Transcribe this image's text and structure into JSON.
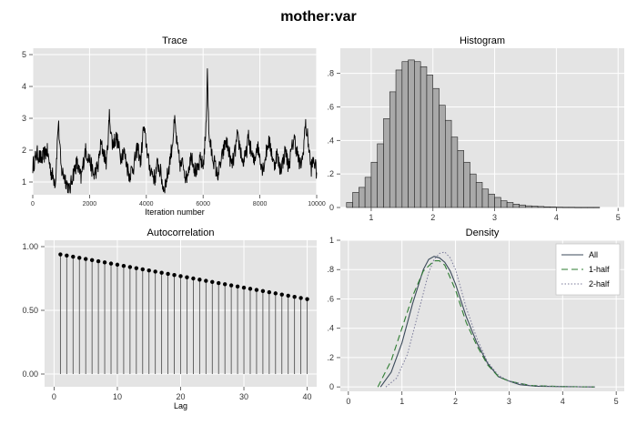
{
  "title": "mother:var",
  "colors": {
    "panel": "#e4e4e4",
    "grid": "#ffffff",
    "bar": "#a9a9a9",
    "line": "#000000",
    "all": "#3b4a5a",
    "half1": "#2e7d32",
    "half2": "#7a7a9a"
  },
  "chart_data": [
    {
      "type": "line",
      "title": "Trace",
      "xlabel": "Iteration number",
      "ylabel": "",
      "xlim": [
        0,
        10000
      ],
      "ylim": [
        0.6,
        5.2
      ],
      "xticks": [
        "0",
        "2000",
        "4000",
        "6000",
        "8000",
        "10000"
      ],
      "yticks": [
        "1",
        "2",
        "3",
        "4",
        "5"
      ],
      "grid": true,
      "anchors": [
        [
          0,
          1.5
        ],
        [
          150,
          1.9
        ],
        [
          300,
          1.7
        ],
        [
          500,
          2.0
        ],
        [
          650,
          1.3
        ],
        [
          800,
          1.0
        ],
        [
          900,
          2.9
        ],
        [
          1000,
          1.4
        ],
        [
          1150,
          1.1
        ],
        [
          1300,
          0.7
        ],
        [
          1400,
          1.2
        ],
        [
          1550,
          1.6
        ],
        [
          1700,
          1.1
        ],
        [
          1850,
          2.0
        ],
        [
          2000,
          1.7
        ],
        [
          2150,
          1.2
        ],
        [
          2300,
          1.5
        ],
        [
          2400,
          2.2
        ],
        [
          2500,
          1.9
        ],
        [
          2600,
          1.6
        ],
        [
          2700,
          3.1
        ],
        [
          2800,
          2.2
        ],
        [
          2950,
          2.4
        ],
        [
          3100,
          1.8
        ],
        [
          3200,
          2.0
        ],
        [
          3400,
          1.2
        ],
        [
          3550,
          1.5
        ],
        [
          3700,
          2.1
        ],
        [
          3800,
          1.6
        ],
        [
          3900,
          2.7
        ],
        [
          4000,
          2.2
        ],
        [
          4100,
          1.5
        ],
        [
          4200,
          1.3
        ],
        [
          4300,
          1.1
        ],
        [
          4400,
          1.6
        ],
        [
          4500,
          1.3
        ],
        [
          4600,
          0.8
        ],
        [
          4700,
          1.0
        ],
        [
          4800,
          1.5
        ],
        [
          4900,
          2.1
        ],
        [
          5000,
          2.9
        ],
        [
          5100,
          2.0
        ],
        [
          5200,
          1.5
        ],
        [
          5300,
          1.6
        ],
        [
          5400,
          1.1
        ],
        [
          5500,
          1.5
        ],
        [
          5600,
          1.9
        ],
        [
          5700,
          1.4
        ],
        [
          5800,
          1.3
        ],
        [
          5900,
          1.7
        ],
        [
          6000,
          1.5
        ],
        [
          6100,
          2.6
        ],
        [
          6150,
          4.6
        ],
        [
          6200,
          2.5
        ],
        [
          6300,
          1.9
        ],
        [
          6400,
          1.6
        ],
        [
          6500,
          1.2
        ],
        [
          6600,
          1.5
        ],
        [
          6700,
          1.9
        ],
        [
          6800,
          2.3
        ],
        [
          6900,
          2.0
        ],
        [
          7000,
          1.5
        ],
        [
          7100,
          1.8
        ],
        [
          7200,
          2.4
        ],
        [
          7300,
          2.1
        ],
        [
          7400,
          1.6
        ],
        [
          7500,
          1.8
        ],
        [
          7600,
          2.4
        ],
        [
          7700,
          1.9
        ],
        [
          7800,
          1.6
        ],
        [
          7900,
          2.2
        ],
        [
          8000,
          1.8
        ],
        [
          8100,
          1.4
        ],
        [
          8200,
          1.8
        ],
        [
          8300,
          2.3
        ],
        [
          8400,
          2.0
        ],
        [
          8500,
          1.5
        ],
        [
          8600,
          1.9
        ],
        [
          8700,
          1.4
        ],
        [
          8800,
          1.6
        ],
        [
          8900,
          2.0
        ],
        [
          9000,
          1.5
        ],
        [
          9100,
          1.9
        ],
        [
          9200,
          2.4
        ],
        [
          9300,
          2.0
        ],
        [
          9400,
          1.5
        ],
        [
          9500,
          1.7
        ],
        [
          9600,
          2.8
        ],
        [
          9700,
          2.3
        ],
        [
          9800,
          1.4
        ],
        [
          9900,
          1.7
        ],
        [
          10000,
          1.3
        ]
      ]
    },
    {
      "type": "bar",
      "title": "Histogram",
      "xlim": [
        0.5,
        5.1
      ],
      "ylim": [
        0,
        0.95
      ],
      "xticks": [
        "1",
        "2",
        "3",
        "4",
        "5"
      ],
      "yticks": [
        "0",
        ".2",
        ".4",
        ".6",
        ".8"
      ],
      "grid": true,
      "bin_start": 0.6,
      "bin_width": 0.1,
      "values": [
        0.03,
        0.09,
        0.12,
        0.18,
        0.27,
        0.38,
        0.53,
        0.69,
        0.82,
        0.87,
        0.88,
        0.87,
        0.84,
        0.79,
        0.71,
        0.61,
        0.52,
        0.42,
        0.34,
        0.27,
        0.2,
        0.15,
        0.11,
        0.08,
        0.06,
        0.04,
        0.03,
        0.02,
        0.015,
        0.01,
        0.008,
        0.006,
        0.004,
        0.003,
        0.002,
        0.0015,
        0.0015,
        0.001,
        0.001,
        0.001,
        0.001
      ]
    },
    {
      "type": "bar",
      "title": "Autocorrelation",
      "xlabel": "Lag",
      "xlim": [
        -1.5,
        41.5
      ],
      "ylim": [
        -0.1,
        1.05
      ],
      "xticks": [
        "0",
        "10",
        "20",
        "30",
        "40"
      ],
      "yticks": [
        "0.00",
        "0.50",
        "1.00"
      ],
      "grid": true,
      "lags": [
        1,
        2,
        3,
        4,
        5,
        6,
        7,
        8,
        9,
        10,
        11,
        12,
        13,
        14,
        15,
        16,
        17,
        18,
        19,
        20,
        21,
        22,
        23,
        24,
        25,
        26,
        27,
        28,
        29,
        30,
        31,
        32,
        33,
        34,
        35,
        36,
        37,
        38,
        39,
        40
      ],
      "values": [
        0.939,
        0.93,
        0.921,
        0.912,
        0.903,
        0.894,
        0.885,
        0.876,
        0.867,
        0.858,
        0.849,
        0.84,
        0.831,
        0.822,
        0.813,
        0.804,
        0.795,
        0.786,
        0.777,
        0.768,
        0.759,
        0.75,
        0.741,
        0.732,
        0.723,
        0.714,
        0.705,
        0.696,
        0.687,
        0.678,
        0.669,
        0.66,
        0.651,
        0.642,
        0.633,
        0.624,
        0.615,
        0.606,
        0.597,
        0.588
      ]
    },
    {
      "type": "line",
      "title": "Density",
      "xlim": [
        -0.15,
        5.15
      ],
      "ylim": [
        -0.03,
        1.0
      ],
      "xticks": [
        "0",
        "1",
        "2",
        "3",
        "4",
        "5"
      ],
      "yticks": [
        "0",
        ".2",
        ".4",
        ".6",
        ".8",
        "1"
      ],
      "grid": true,
      "legend": "top-right",
      "series": [
        {
          "name": "All",
          "x": [
            0.6,
            0.8,
            1.0,
            1.2,
            1.4,
            1.5,
            1.6,
            1.7,
            1.8,
            1.9,
            2.0,
            2.2,
            2.4,
            2.6,
            2.8,
            3.0,
            3.2,
            3.5,
            4.0,
            4.6
          ],
          "y": [
            0.0,
            0.1,
            0.3,
            0.57,
            0.8,
            0.87,
            0.89,
            0.88,
            0.85,
            0.79,
            0.7,
            0.48,
            0.3,
            0.16,
            0.07,
            0.04,
            0.015,
            0.005,
            0.002,
            0.0
          ]
        },
        {
          "name": "1-half",
          "x": [
            0.55,
            0.8,
            1.0,
            1.2,
            1.4,
            1.6,
            1.7,
            1.8,
            2.0,
            2.2,
            2.4,
            2.6,
            2.8,
            3.0,
            3.4,
            4.0,
            4.6
          ],
          "y": [
            0.0,
            0.18,
            0.4,
            0.62,
            0.79,
            0.86,
            0.86,
            0.83,
            0.66,
            0.44,
            0.28,
            0.15,
            0.07,
            0.04,
            0.01,
            0.002,
            0.0
          ]
        },
        {
          "name": "2-half",
          "x": [
            0.7,
            0.9,
            1.1,
            1.3,
            1.5,
            1.6,
            1.7,
            1.8,
            1.9,
            2.0,
            2.2,
            2.4,
            2.6,
            2.8,
            3.0,
            3.4,
            4.0,
            4.6
          ],
          "y": [
            0.0,
            0.06,
            0.22,
            0.5,
            0.78,
            0.87,
            0.91,
            0.92,
            0.88,
            0.8,
            0.54,
            0.33,
            0.17,
            0.08,
            0.04,
            0.01,
            0.002,
            0.0
          ]
        }
      ]
    }
  ]
}
